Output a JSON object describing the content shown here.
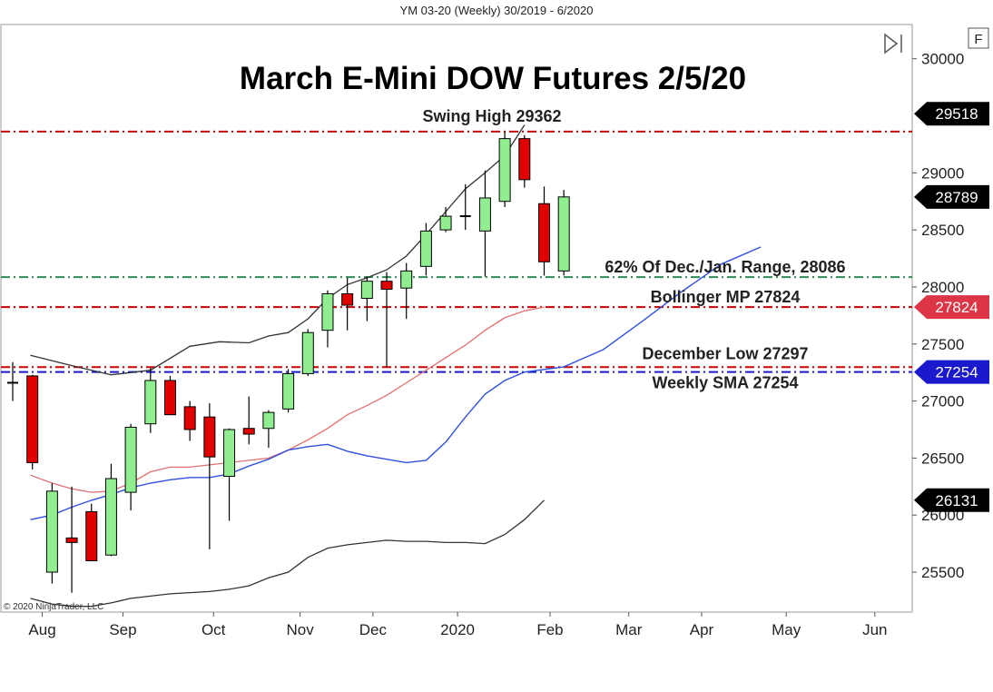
{
  "header": {
    "subtitle": "YM 03-20 (Weekly)  30/2019 - 6/2020"
  },
  "toolbar": {
    "f_button_label": "F",
    "scroll_icon": "skip-to-end-icon"
  },
  "copyright": "© 2020 NinjaTrader, LLC",
  "colors": {
    "bull": "#90ee90",
    "bear": "#e00000",
    "candle_outline": "#000000",
    "bollinger_band": "#333333",
    "bollinger_mid": "#e07070",
    "sma": "#3050e0",
    "red_level": "#cc0000",
    "green_level": "#2e8b57",
    "blue_level": "#1a1acc",
    "tag_dark": "#000000",
    "tag_red": "#dc3545",
    "tag_blue": "#1a1acc"
  },
  "chart_data": {
    "type": "candlestick",
    "title": "March E-Mini DOW Futures 2/5/20",
    "x_axis_labels": [
      {
        "label": "Aug",
        "week": 1.5
      },
      {
        "label": "Sep",
        "week": 5.6
      },
      {
        "label": "Oct",
        "week": 10.2
      },
      {
        "label": "Nov",
        "week": 14.6
      },
      {
        "label": "Dec",
        "week": 18.3
      },
      {
        "label": "2020",
        "week": 22.6
      },
      {
        "label": "Feb",
        "week": 27.3
      },
      {
        "label": "Mar",
        "week": 31.3
      },
      {
        "label": "Apr",
        "week": 35.0
      },
      {
        "label": "May",
        "week": 39.3
      },
      {
        "label": "Jun",
        "week": 43.8
      }
    ],
    "y_ticks": [
      25500,
      26000,
      26500,
      27000,
      27500,
      28000,
      28500,
      29000,
      30000
    ],
    "ylim": [
      25150,
      30300
    ],
    "xlim": [
      -0.6,
      45.7
    ],
    "candles": [
      {
        "o": 27160,
        "h": 27340,
        "l": 27000,
        "c": 27160
      },
      {
        "o": 27220,
        "h": 27230,
        "l": 26400,
        "c": 26460
      },
      {
        "o": 25500,
        "h": 26280,
        "l": 25400,
        "c": 26210
      },
      {
        "o": 25800,
        "h": 26250,
        "l": 25320,
        "c": 25760
      },
      {
        "o": 26030,
        "h": 26100,
        "l": 25600,
        "c": 25600
      },
      {
        "o": 25650,
        "h": 26450,
        "l": 25640,
        "c": 26320
      },
      {
        "o": 26200,
        "h": 26800,
        "l": 26040,
        "c": 26770
      },
      {
        "o": 26800,
        "h": 27290,
        "l": 26720,
        "c": 27180
      },
      {
        "o": 27180,
        "h": 27220,
        "l": 26880,
        "c": 26880
      },
      {
        "o": 26950,
        "h": 27000,
        "l": 26650,
        "c": 26750
      },
      {
        "o": 26860,
        "h": 26980,
        "l": 25700,
        "c": 26510
      },
      {
        "o": 26340,
        "h": 26760,
        "l": 25950,
        "c": 26750
      },
      {
        "o": 26760,
        "h": 27040,
        "l": 26620,
        "c": 26710
      },
      {
        "o": 26760,
        "h": 26920,
        "l": 26590,
        "c": 26900
      },
      {
        "o": 26930,
        "h": 27280,
        "l": 26900,
        "c": 27240
      },
      {
        "o": 27240,
        "h": 27630,
        "l": 27220,
        "c": 27600
      },
      {
        "o": 27620,
        "h": 27970,
        "l": 27470,
        "c": 27940
      },
      {
        "o": 27940,
        "h": 28080,
        "l": 27620,
        "c": 27840
      },
      {
        "o": 27900,
        "h": 28090,
        "l": 27700,
        "c": 28050
      },
      {
        "o": 28050,
        "h": 28130,
        "l": 27300,
        "c": 27980
      },
      {
        "o": 27990,
        "h": 28210,
        "l": 27720,
        "c": 28140
      },
      {
        "o": 28180,
        "h": 28560,
        "l": 28100,
        "c": 28490
      },
      {
        "o": 28500,
        "h": 28700,
        "l": 28480,
        "c": 28620
      },
      {
        "o": 28620,
        "h": 28900,
        "l": 28500,
        "c": 28620
      },
      {
        "o": 28490,
        "h": 29020,
        "l": 28090,
        "c": 28780
      },
      {
        "o": 28750,
        "h": 29362,
        "l": 28700,
        "c": 29300
      },
      {
        "o": 29300,
        "h": 29330,
        "l": 28870,
        "c": 28940
      },
      {
        "o": 28730,
        "h": 28880,
        "l": 28100,
        "c": 28220
      },
      {
        "o": 28140,
        "h": 28850,
        "l": 28100,
        "c": 28789
      }
    ],
    "bollinger_upper": [
      [
        0.9,
        27400
      ],
      [
        3,
        27310
      ],
      [
        5,
        27230
      ],
      [
        7,
        27270
      ],
      [
        9,
        27480
      ],
      [
        10.5,
        27520
      ],
      [
        12,
        27510
      ],
      [
        13,
        27570
      ],
      [
        14,
        27600
      ],
      [
        15,
        27720
      ],
      [
        16,
        27900
      ],
      [
        17,
        28020
      ],
      [
        18,
        28080
      ],
      [
        19,
        28150
      ],
      [
        20,
        28270
      ],
      [
        21,
        28460
      ],
      [
        22,
        28660
      ],
      [
        23,
        28860
      ],
      [
        24,
        29000
      ],
      [
        25,
        29150
      ],
      [
        26,
        29420
      ]
    ],
    "bollinger_mid": [
      [
        0.9,
        26350
      ],
      [
        2,
        26280
      ],
      [
        3,
        26230
      ],
      [
        4,
        26200
      ],
      [
        5,
        26210
      ],
      [
        6,
        26280
      ],
      [
        7,
        26380
      ],
      [
        8,
        26420
      ],
      [
        9,
        26420
      ],
      [
        10,
        26440
      ],
      [
        11,
        26460
      ],
      [
        12,
        26480
      ],
      [
        13,
        26500
      ],
      [
        14,
        26570
      ],
      [
        15,
        26660
      ],
      [
        16,
        26760
      ],
      [
        17,
        26880
      ],
      [
        18,
        26960
      ],
      [
        19,
        27050
      ],
      [
        20,
        27160
      ],
      [
        21,
        27270
      ],
      [
        22,
        27380
      ],
      [
        23,
        27490
      ],
      [
        24,
        27620
      ],
      [
        25,
        27730
      ],
      [
        26,
        27790
      ],
      [
        27,
        27824
      ]
    ],
    "bollinger_lower": [
      [
        0.9,
        25270
      ],
      [
        2,
        25220
      ],
      [
        3,
        25200
      ],
      [
        4,
        25200
      ],
      [
        5,
        25230
      ],
      [
        6,
        25270
      ],
      [
        7,
        25290
      ],
      [
        8,
        25310
      ],
      [
        9,
        25320
      ],
      [
        10,
        25330
      ],
      [
        11,
        25350
      ],
      [
        12,
        25380
      ],
      [
        13,
        25450
      ],
      [
        14,
        25500
      ],
      [
        15,
        25630
      ],
      [
        16,
        25710
      ],
      [
        17,
        25740
      ],
      [
        18,
        25760
      ],
      [
        19,
        25780
      ],
      [
        20,
        25770
      ],
      [
        21,
        25770
      ],
      [
        22,
        25760
      ],
      [
        23,
        25760
      ],
      [
        24,
        25750
      ],
      [
        25,
        25830
      ],
      [
        26,
        25960
      ],
      [
        27,
        26131
      ]
    ],
    "weekly_sma": [
      [
        0.9,
        25960
      ],
      [
        2,
        26000
      ],
      [
        3,
        26070
      ],
      [
        4,
        26130
      ],
      [
        5,
        26180
      ],
      [
        6,
        26240
      ],
      [
        7,
        26280
      ],
      [
        8,
        26310
      ],
      [
        9,
        26330
      ],
      [
        10,
        26330
      ],
      [
        11,
        26360
      ],
      [
        12,
        26430
      ],
      [
        13,
        26490
      ],
      [
        14,
        26570
      ],
      [
        15,
        26600
      ],
      [
        16,
        26620
      ],
      [
        17,
        26560
      ],
      [
        18,
        26520
      ],
      [
        19,
        26490
      ],
      [
        20,
        26460
      ],
      [
        21,
        26480
      ],
      [
        22,
        26640
      ],
      [
        23,
        26860
      ],
      [
        24,
        27060
      ],
      [
        25,
        27180
      ],
      [
        26,
        27254
      ],
      [
        28,
        27300
      ],
      [
        30,
        27450
      ],
      [
        32,
        27700
      ],
      [
        34,
        27960
      ],
      [
        36,
        28200
      ],
      [
        38,
        28350
      ]
    ],
    "levels": [
      {
        "name": "swing-high",
        "value": 29362,
        "color": "#cc0000",
        "label": "Swing High 29362"
      },
      {
        "name": "fib-62",
        "value": 28086,
        "color": "#2e8b57",
        "label": "62% Of Dec./Jan. Range, 28086"
      },
      {
        "name": "bollinger-mp",
        "value": 27824,
        "color": "#cc0000",
        "label": "Bollinger MP 27824"
      },
      {
        "name": "december-low",
        "value": 27297,
        "color": "#cc0000",
        "label": "December Low 27297"
      },
      {
        "name": "weekly-sma",
        "value": 27254,
        "color": "#1a1acc",
        "label": "Weekly SMA 27254"
      }
    ],
    "price_tags": [
      {
        "name": "tag-29518",
        "value": 29518,
        "label": "29518",
        "color": "#000000"
      },
      {
        "name": "tag-28789",
        "value": 28789,
        "label": "28789",
        "color": "#000000"
      },
      {
        "name": "tag-27824",
        "value": 27824,
        "label": "27824",
        "color": "#dc3545"
      },
      {
        "name": "tag-27254",
        "value": 27254,
        "label": "27254",
        "color": "#1a1acc"
      },
      {
        "name": "tag-26131",
        "value": 26131,
        "label": "26131",
        "color": "#000000"
      }
    ]
  }
}
